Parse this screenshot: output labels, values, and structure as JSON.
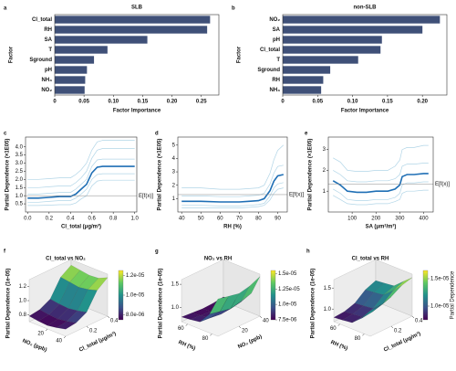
{
  "chart_data": [
    {
      "type": "barh",
      "panel": "a",
      "title": "SLB",
      "xlabel": "Factor Importance",
      "ylabel": "Factor",
      "color": "#3f5078",
      "categories": [
        "Cl_total",
        "RH",
        "SA",
        "T",
        "Sground",
        "pH",
        "NH₃",
        "NO₂"
      ],
      "values": [
        0.265,
        0.26,
        0.158,
        0.09,
        0.067,
        0.055,
        0.052,
        0.051
      ],
      "xlim": [
        0,
        0.28
      ],
      "xticks": [
        0,
        0.05,
        {
          "value": 0.1,
          "label": "0.10"
        },
        0.15,
        {
          "value": 0.2,
          "label": "0.20"
        },
        0.25
      ]
    },
    {
      "type": "barh",
      "panel": "b",
      "title": "non-SLB",
      "xlabel": "Factor Importance",
      "ylabel": "Factor",
      "color": "#3f5078",
      "categories": [
        "NO₂",
        "SA",
        "pH",
        "Cl_total",
        "T",
        "Sground",
        "RH",
        "NH₃"
      ],
      "values": [
        0.225,
        0.2,
        0.142,
        0.14,
        0.108,
        0.068,
        0.058,
        0.055
      ],
      "xlim": [
        0,
        0.235
      ],
      "xticks": [
        0,
        0.05,
        {
          "value": 0.1,
          "label": "0.10"
        },
        0.15,
        {
          "value": 0.2,
          "label": "0.20"
        }
      ]
    },
    {
      "type": "line",
      "panel": "c",
      "xlabel": "Cl_total (μg/m³)",
      "ylabel": "Partial Dependence (×1E05)",
      "x": [
        0,
        0.1,
        0.2,
        0.3,
        0.4,
        0.45,
        0.5,
        0.55,
        0.6,
        0.65,
        0.7,
        0.8,
        0.9,
        1.0
      ],
      "series": [
        {
          "color": "#9ecae1",
          "values": [
            0.6,
            0.6,
            0.65,
            0.7,
            0.7,
            0.85,
            1.1,
            1.4,
            2.0,
            2.3,
            2.35,
            2.35,
            2.35,
            2.35
          ]
        },
        {
          "color": "#9ecae1",
          "values": [
            1.1,
            1.1,
            1.15,
            1.2,
            1.2,
            1.4,
            1.7,
            2.0,
            2.8,
            3.2,
            3.25,
            3.25,
            3.25,
            3.25
          ]
        },
        {
          "color": "#9ecae1",
          "values": [
            1.5,
            1.5,
            1.55,
            1.6,
            1.6,
            1.8,
            2.1,
            2.5,
            3.3,
            3.8,
            3.9,
            3.9,
            3.9,
            3.9
          ]
        },
        {
          "color": "#9ecae1",
          "values": [
            0.4,
            0.4,
            0.42,
            0.45,
            0.45,
            0.55,
            0.8,
            1.0,
            1.6,
            1.9,
            1.95,
            1.95,
            1.95,
            1.95
          ]
        },
        {
          "color": "#9ecae1",
          "values": [
            2.0,
            2.0,
            2.05,
            2.1,
            2.1,
            2.3,
            2.6,
            3.0,
            3.8,
            4.3,
            4.4,
            4.4,
            4.4,
            4.4
          ]
        },
        {
          "color": "#1f6fb5",
          "values": [
            0.85,
            0.85,
            0.9,
            0.95,
            0.95,
            1.1,
            1.4,
            1.7,
            2.4,
            2.75,
            2.8,
            2.8,
            2.8,
            2.8
          ]
        }
      ],
      "expected_value": 1.0,
      "expected_label": "E[f(x)]",
      "xlim": [
        -0.02,
        1.02
      ],
      "xticks": [
        {
          "value": 0,
          "label": "0.0"
        },
        0.2,
        0.4,
        0.6,
        0.8,
        {
          "value": 1,
          "label": "1.0"
        }
      ],
      "ylim": [
        0,
        4.6
      ],
      "yticks": [
        0.5,
        {
          "value": 1,
          "label": "1.0"
        },
        1.5,
        {
          "value": 2,
          "label": "2.0"
        },
        2.5,
        {
          "value": 3,
          "label": "3.0"
        },
        3.5,
        {
          "value": 4,
          "label": "4.0"
        }
      ]
    },
    {
      "type": "line",
      "panel": "d",
      "xlabel": "RH (%)",
      "ylabel": "Partial Dependence (×1E05)",
      "x": [
        40,
        50,
        60,
        70,
        75,
        80,
        83,
        86,
        88,
        90,
        93
      ],
      "series": [
        {
          "color": "#9ecae1",
          "values": [
            0.5,
            0.5,
            0.45,
            0.45,
            0.5,
            0.55,
            0.65,
            1.2,
            1.8,
            2.1,
            2.2
          ]
        },
        {
          "color": "#9ecae1",
          "values": [
            1.2,
            1.2,
            1.15,
            1.15,
            1.2,
            1.25,
            1.4,
            2.1,
            2.9,
            3.4,
            3.5
          ]
        },
        {
          "color": "#9ecae1",
          "values": [
            1.8,
            1.8,
            1.7,
            1.7,
            1.75,
            1.8,
            2.0,
            2.9,
            3.9,
            4.6,
            5.0
          ]
        },
        {
          "color": "#9ecae1",
          "values": [
            0.3,
            0.3,
            0.3,
            0.3,
            0.35,
            0.4,
            0.5,
            0.9,
            1.4,
            1.7,
            1.8
          ]
        },
        {
          "color": "#1f6fb5",
          "values": [
            0.8,
            0.8,
            0.75,
            0.75,
            0.8,
            0.85,
            1.0,
            1.6,
            2.3,
            2.7,
            2.8
          ]
        }
      ],
      "expected_value": 1.3,
      "expected_label": "E[f(x)]",
      "xlim": [
        38,
        95
      ],
      "xticks": [
        40,
        50,
        60,
        70,
        80,
        90
      ],
      "ylim": [
        0,
        5.6
      ],
      "yticks": [
        1,
        2,
        3,
        4,
        5
      ]
    },
    {
      "type": "line",
      "panel": "e",
      "xlabel": "SA (μm²/m³)",
      "ylabel": "Partial Dependence (×1E05)",
      "x": [
        20,
        50,
        80,
        120,
        160,
        200,
        250,
        280,
        300,
        310,
        330,
        360,
        400,
        420
      ],
      "series": [
        {
          "color": "#9ecae1",
          "values": [
            1.1,
            0.9,
            0.6,
            0.55,
            0.55,
            0.6,
            0.6,
            0.7,
            0.9,
            1.3,
            1.4,
            1.4,
            1.45,
            1.45
          ]
        },
        {
          "color": "#9ecae1",
          "values": [
            2.0,
            1.8,
            1.5,
            1.45,
            1.45,
            1.5,
            1.5,
            1.6,
            1.8,
            2.2,
            2.3,
            2.3,
            2.35,
            2.35
          ]
        },
        {
          "color": "#9ecae1",
          "values": [
            2.6,
            2.4,
            2.0,
            1.95,
            1.95,
            2.0,
            2.0,
            2.2,
            2.5,
            3.0,
            3.1,
            3.1,
            3.2,
            3.2
          ]
        },
        {
          "color": "#9ecae1",
          "values": [
            0.8,
            0.6,
            0.4,
            0.35,
            0.35,
            0.4,
            0.4,
            0.5,
            0.6,
            0.9,
            1.0,
            1.0,
            1.05,
            1.05
          ]
        },
        {
          "color": "#1f6fb5",
          "values": [
            1.5,
            1.3,
            1.0,
            0.95,
            0.95,
            1.0,
            1.0,
            1.1,
            1.3,
            1.7,
            1.8,
            1.8,
            1.85,
            1.85
          ]
        }
      ],
      "expected_value": 1.35,
      "expected_label": "E[f(x)]",
      "xlim": [
        0,
        440
      ],
      "xticks": [
        100,
        200,
        300,
        400
      ],
      "ylim": [
        0,
        3.6
      ],
      "yticks": [
        1,
        2,
        3
      ]
    },
    {
      "type": "surface",
      "panel": "f",
      "title": "Cl_total vs NO₂",
      "xlabel": "NO₂ (ppb)",
      "ylabel": "Cl_total (μg/m³)",
      "zlabel": "Partial Dependence (1e-05)",
      "x": [
        0,
        10,
        20,
        30,
        40
      ],
      "y": [
        0,
        0.1,
        0.2,
        0.3,
        0.4
      ],
      "z": [
        [
          0.78,
          0.8,
          0.88,
          1.12,
          1.22
        ],
        [
          0.76,
          0.78,
          0.86,
          1.1,
          1.2
        ],
        [
          0.75,
          0.77,
          0.85,
          1.08,
          1.18
        ],
        [
          0.77,
          0.79,
          0.87,
          1.1,
          1.19
        ],
        [
          0.8,
          0.82,
          0.9,
          1.14,
          1.25
        ]
      ],
      "xticks": [
        20,
        40
      ],
      "yticks": [
        0.2,
        0.4
      ],
      "zlim": [
        0.7,
        1.3
      ],
      "zticks": [
        0.8,
        {
          "value": 1,
          "label": "1.0"
        },
        1.2
      ],
      "clim": [
        0.75,
        1.25
      ],
      "cbticks": [
        {
          "value": 0.8,
          "label": "8.0e-06"
        },
        {
          "value": 1.0,
          "label": "1.0e-05"
        },
        {
          "value": 1.2,
          "label": "1.2e-05"
        }
      ]
    },
    {
      "type": "surface",
      "panel": "g",
      "title": "NO₂ vs RH",
      "xlabel": "RH (%)",
      "ylabel": "NO₂ (ppb)",
      "zlabel": "Partial Dependence (1e-05)",
      "x": [
        55,
        62,
        70,
        78,
        85
      ],
      "y": [
        0,
        10,
        20,
        30,
        40
      ],
      "z": [
        [
          0.8,
          0.78,
          0.76,
          0.77,
          0.8
        ],
        [
          0.82,
          0.8,
          0.78,
          0.79,
          0.82
        ],
        [
          0.85,
          0.83,
          0.8,
          0.82,
          0.86
        ],
        [
          1.1,
          1.05,
          1.0,
          1.05,
          1.12
        ],
        [
          1.5,
          1.45,
          1.4,
          1.45,
          1.55
        ]
      ],
      "xticks": [
        60,
        80
      ],
      "yticks": [
        20,
        40
      ],
      "zlim": [
        0.7,
        1.6
      ],
      "zticks": [
        {
          "value": 1,
          "label": "1.0"
        },
        1.5
      ],
      "clim": [
        0.75,
        1.55
      ],
      "cbticks": [
        {
          "value": 0.75,
          "label": "7.5e-06"
        },
        {
          "value": 1.0,
          "label": "1.0e-05"
        },
        {
          "value": 1.25,
          "label": "1.25e-05"
        },
        {
          "value": 1.5,
          "label": "1.5e-05"
        }
      ]
    },
    {
      "type": "surface",
      "panel": "h",
      "title": "Cl_total vs RH",
      "xlabel": "RH (%)",
      "ylabel": "Cl_total (μg/m³)",
      "zlabel": "Partial Dependence (1e-05)",
      "colorbar_label": "Partial Dependence",
      "x": [
        55,
        62,
        70,
        78,
        85
      ],
      "y": [
        0,
        0.1,
        0.2,
        0.3,
        0.4
      ],
      "z": [
        [
          0.8,
          0.82,
          0.9,
          1.1,
          1.2
        ],
        [
          0.82,
          0.84,
          0.92,
          1.12,
          1.22
        ],
        [
          0.85,
          0.87,
          0.95,
          1.15,
          1.25
        ],
        [
          1.05,
          1.08,
          1.15,
          1.35,
          1.45
        ],
        [
          1.3,
          1.32,
          1.4,
          1.55,
          1.62
        ]
      ],
      "xticks": [
        60,
        80
      ],
      "yticks": [
        0.2,
        0.4
      ],
      "zlim": [
        0.7,
        1.7
      ],
      "zticks": [
        {
          "value": 1,
          "label": "1.0"
        },
        1.5
      ],
      "clim": [
        0.75,
        1.65
      ],
      "cbticks": [
        {
          "value": 1.0,
          "label": "1.0e-05"
        },
        {
          "value": 1.5,
          "label": "1.5e-05"
        }
      ]
    }
  ]
}
